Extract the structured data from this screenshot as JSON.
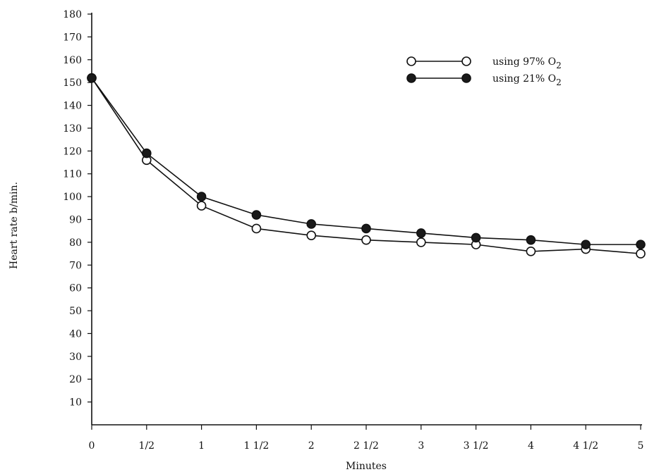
{
  "chart_data": {
    "type": "line",
    "xlabel": "Minutes",
    "ylabel": "Heart rate b/min.",
    "x": [
      0,
      0.5,
      1,
      1.5,
      2,
      2.5,
      3,
      3.5,
      4,
      4.5,
      5
    ],
    "x_tick_labels": [
      "0",
      "1/2",
      "1",
      "1 1/2",
      "2",
      "2 1/2",
      "3",
      "3 1/2",
      "4",
      "4 1/2",
      "5"
    ],
    "xlim": [
      0,
      5
    ],
    "ylim": [
      0,
      180
    ],
    "y_ticks": [
      10,
      20,
      30,
      40,
      50,
      60,
      70,
      80,
      90,
      100,
      110,
      120,
      130,
      140,
      150,
      160,
      170,
      180
    ],
    "grid": false,
    "legend_position": "top-right",
    "series": [
      {
        "name": "using 97% O",
        "name_subscript": "2",
        "marker": "open-circle",
        "values": [
          152,
          116,
          96,
          86,
          83,
          81,
          80,
          79,
          76,
          77,
          75
        ]
      },
      {
        "name": "using 21% O",
        "name_subscript": "2",
        "marker": "filled-circle",
        "values": [
          152,
          119,
          100,
          92,
          88,
          86,
          84,
          82,
          81,
          79,
          79
        ]
      }
    ],
    "colors": {
      "line": "#111111",
      "marker_fill": "#1a1a1a",
      "open_fill": "#ffffff"
    }
  }
}
